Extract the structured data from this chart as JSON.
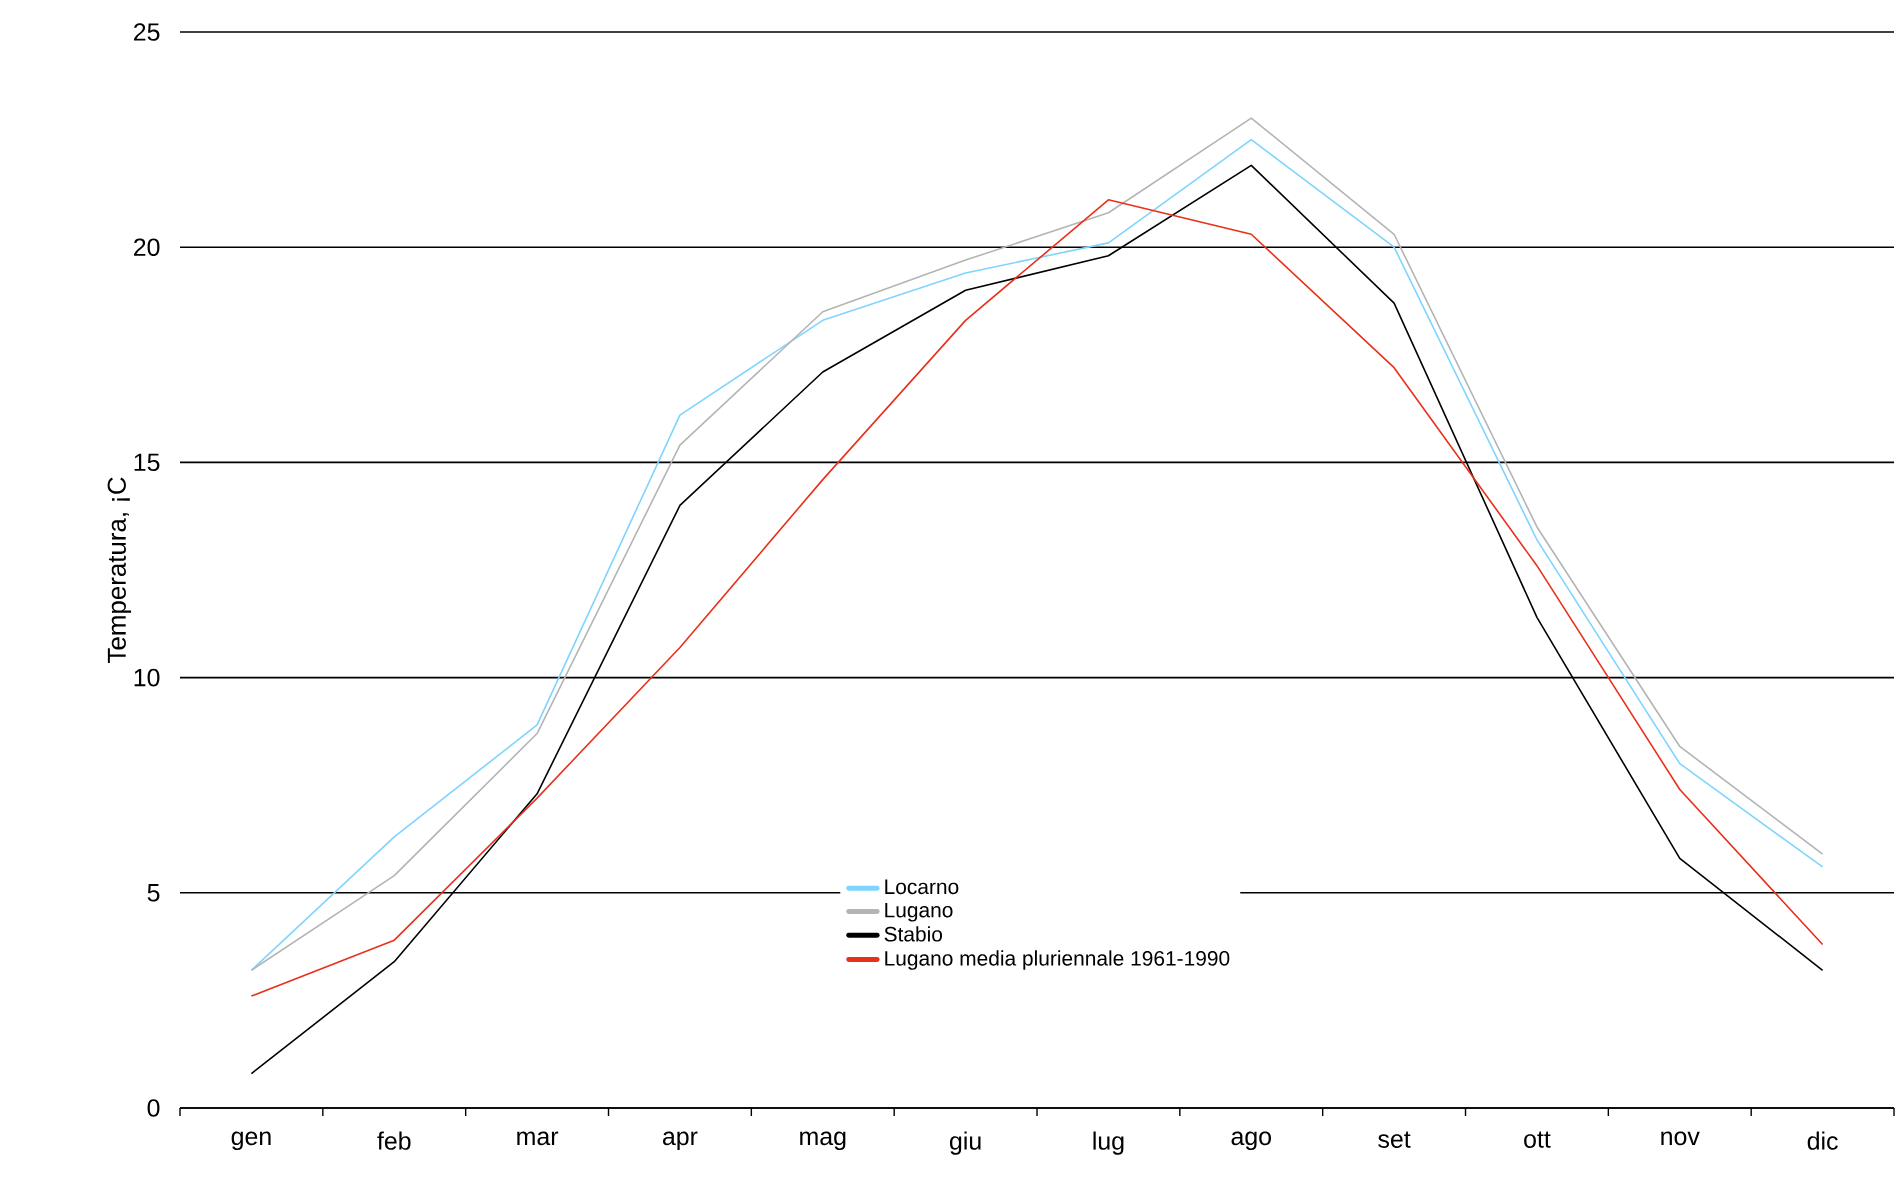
{
  "chart_data": {
    "type": "line",
    "ylabel": "Temperatura, ¡C",
    "categories": [
      "gen",
      "feb",
      "mar",
      "apr",
      "mag",
      "giu",
      "lug",
      "ago",
      "set",
      "ott",
      "nov",
      "dic"
    ],
    "series": [
      {
        "name": "Locarno",
        "color": "#7fd4ff",
        "values": [
          3.2,
          6.3,
          8.9,
          16.1,
          18.3,
          19.4,
          20.1,
          22.5,
          20.0,
          13.2,
          8.0,
          5.6
        ]
      },
      {
        "name": "Lugano",
        "color": "#b4b4b4",
        "values": [
          3.2,
          5.4,
          8.7,
          15.4,
          18.5,
          19.7,
          20.8,
          23.0,
          20.3,
          13.5,
          8.4,
          5.9
        ]
      },
      {
        "name": "Stabio",
        "color": "#000000",
        "values": [
          0.8,
          3.4,
          7.3,
          14.0,
          17.1,
          19.0,
          19.8,
          21.9,
          18.7,
          11.4,
          5.8,
          3.2
        ]
      },
      {
        "name": "Lugano media pluriennale 1961-1990",
        "color": "#e8301a",
        "values": [
          2.6,
          3.9,
          7.2,
          10.7,
          14.6,
          18.3,
          21.1,
          20.3,
          17.2,
          12.6,
          7.4,
          3.8
        ]
      }
    ],
    "ylim": [
      0,
      25
    ],
    "yticks": [
      0,
      5,
      10,
      15,
      20,
      25
    ],
    "grid": "y",
    "legend": "bottom",
    "marker": "none",
    "line_style": "solid"
  }
}
